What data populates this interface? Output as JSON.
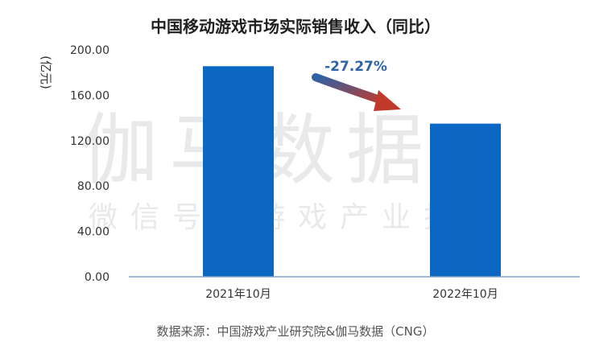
{
  "chart_data": {
    "type": "bar",
    "title": "中国移动游戏市场实际销售收入（同比）",
    "ylabel": "(亿元)",
    "xlabel": "",
    "categories": [
      "2021年10月",
      "2022年10月"
    ],
    "values": [
      185.6,
      135.0
    ],
    "ylim": [
      0,
      200
    ],
    "yticks": [
      "0.00",
      "40.00",
      "80.00",
      "120.00",
      "160.00",
      "200.00"
    ],
    "grid": false,
    "bar_color": "#0b66c4",
    "annotation": {
      "text": "-27.27%",
      "color": "#2e63a8",
      "arrow_color": "#c0392b"
    }
  },
  "watermark": {
    "main": "伽马数据",
    "sub": "微信号：游戏产业报告"
  },
  "source": "数据来源：中国游戏产业研究院&伽马数据（CNG）"
}
